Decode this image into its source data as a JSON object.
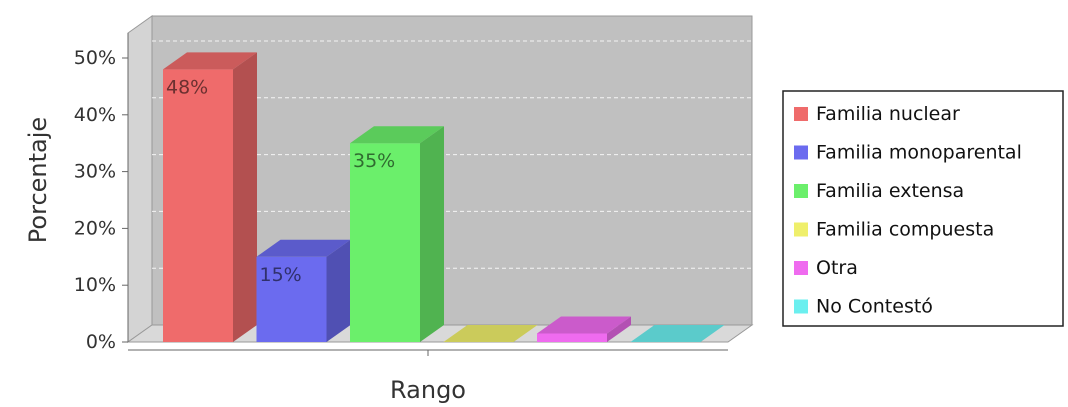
{
  "chart_data": {
    "type": "bar",
    "title": "",
    "xlabel": "Rango",
    "ylabel": "Porcentaje",
    "ylim": [
      0,
      50
    ],
    "y_ticks": [
      "0%",
      "10%",
      "20%",
      "30%",
      "40%",
      "50%"
    ],
    "grid": true,
    "three_d": true,
    "legend_position": "right",
    "series": [
      {
        "name": "Familia nuclear",
        "value": 48,
        "label": "48%",
        "color": "#ef6b6b"
      },
      {
        "name": "Familia monoparental",
        "value": 15,
        "label": "15%",
        "color": "#6b6bef"
      },
      {
        "name": "Familia extensa",
        "value": 35,
        "label": "35%",
        "color": "#6bef6b"
      },
      {
        "name": "Familia compuesta",
        "value": 0,
        "label": "",
        "color": "#efef6b"
      },
      {
        "name": "Otra",
        "value": 1.5,
        "label": "",
        "color": "#ef6bef"
      },
      {
        "name": "No Contestó",
        "value": 0,
        "label": "",
        "color": "#6befef"
      }
    ]
  }
}
